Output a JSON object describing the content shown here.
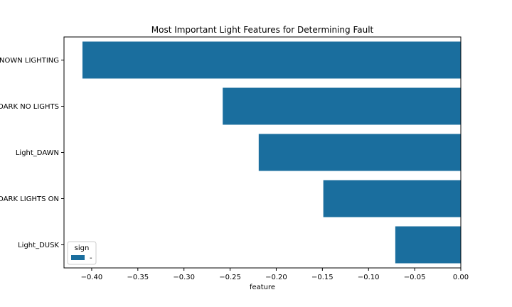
{
  "chart_data": {
    "type": "bar",
    "orientation": "horizontal",
    "title": "Most Important Light Features for Determining Fault",
    "xlabel": "feature",
    "ylabel": "",
    "categories": [
      "Light_UNKNOWN LIGHTING",
      "Light_DARK NO LIGHTS",
      "Light_DAWN",
      "Light_DARK LIGHTS ON",
      "Light_DUSK"
    ],
    "series": [
      {
        "name": "-",
        "values": [
          -0.41,
          -0.258,
          -0.219,
          -0.149,
          -0.071
        ]
      }
    ],
    "xlim": [
      -0.43,
      0.0
    ],
    "xticks": [
      "-0.40",
      "-0.35",
      "-0.30",
      "-0.25",
      "-0.20",
      "-0.15",
      "-0.10",
      "-0.05",
      "0.00"
    ],
    "legend": {
      "title": "sign",
      "placement": "lower-left",
      "labels": [
        "-"
      ]
    },
    "grid": false,
    "colors": {
      "bar": "#1a6e9e"
    }
  }
}
